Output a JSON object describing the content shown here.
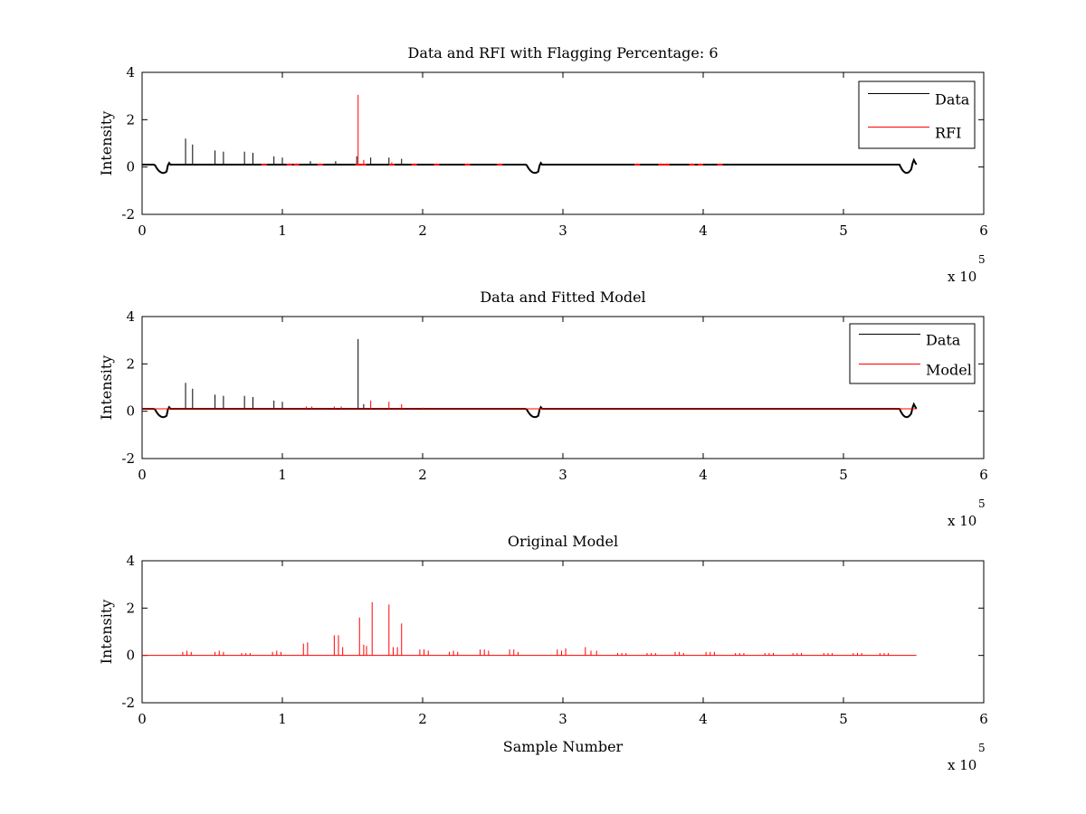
{
  "figure": {
    "background": "#ffffff"
  },
  "chart_data": [
    {
      "type": "line",
      "title": "Data and RFI with Flagging Percentage: 6",
      "xlabel": "",
      "ylabel": "Intensity",
      "xlim": [
        0,
        6
      ],
      "ylim": [
        -2,
        4
      ],
      "x_ticks": [
        "0",
        "1",
        "2",
        "3",
        "4",
        "5",
        "6"
      ],
      "y_ticks": [
        "-2",
        "0",
        "2",
        "4"
      ],
      "x_multiplier_text": "x 10",
      "x_multiplier_exponent": "5",
      "legend": {
        "placement": "top-right",
        "entries": [
          {
            "label": "Data",
            "color": "#000000"
          },
          {
            "label": "RFI",
            "color": "#ff0000"
          }
        ]
      },
      "series": [
        {
          "name": "Data",
          "color": "#000000",
          "baseline": 0.1,
          "end_x": 5.52,
          "dips": [
            {
              "x": 0.15,
              "depth": -0.35,
              "width": 0.12
            },
            {
              "x": 2.8,
              "depth": -0.35,
              "width": 0.12
            },
            {
              "x": 5.45,
              "depth": -0.35,
              "width": 0.1
            }
          ],
          "bumps": [
            {
              "x": 0.19,
              "height": 0.25,
              "width": 0.03
            },
            {
              "x": 2.84,
              "height": 0.25,
              "width": 0.03
            },
            {
              "x": 5.5,
              "height": 0.2,
              "width": 0.03
            }
          ],
          "spikes": [
            {
              "x": 0.31,
              "y": 1.2
            },
            {
              "x": 0.36,
              "y": 0.95
            },
            {
              "x": 0.52,
              "y": 0.7
            },
            {
              "x": 0.58,
              "y": 0.65
            },
            {
              "x": 0.73,
              "y": 0.65
            },
            {
              "x": 0.79,
              "y": 0.6
            },
            {
              "x": 0.94,
              "y": 0.45
            },
            {
              "x": 1.0,
              "y": 0.4
            },
            {
              "x": 1.2,
              "y": 0.25
            },
            {
              "x": 1.38,
              "y": 0.25
            },
            {
              "x": 1.53,
              "y": 0.45
            },
            {
              "x": 1.63,
              "y": 0.4
            },
            {
              "x": 1.76,
              "y": 0.4
            },
            {
              "x": 1.85,
              "y": 0.35
            }
          ]
        },
        {
          "name": "RFI",
          "color": "#ff0000",
          "baseline": 0.1,
          "spikes": [
            {
              "x": 1.54,
              "y": 3.05
            },
            {
              "x": 1.58,
              "y": 0.3
            },
            {
              "x": 0.87,
              "y": 0.15
            },
            {
              "x": 1.05,
              "y": 0.15
            },
            {
              "x": 1.1,
              "y": 0.15
            },
            {
              "x": 1.27,
              "y": 0.15
            },
            {
              "x": 1.78,
              "y": 0.2
            },
            {
              "x": 1.94,
              "y": 0.15
            },
            {
              "x": 2.1,
              "y": 0.15
            },
            {
              "x": 2.32,
              "y": 0.15
            },
            {
              "x": 2.55,
              "y": 0.15
            },
            {
              "x": 3.53,
              "y": 0.15
            },
            {
              "x": 3.7,
              "y": 0.15
            },
            {
              "x": 3.74,
              "y": 0.15
            },
            {
              "x": 3.92,
              "y": 0.15
            },
            {
              "x": 3.98,
              "y": 0.15
            },
            {
              "x": 4.12,
              "y": 0.15
            }
          ]
        }
      ]
    },
    {
      "type": "line",
      "title": "Data and Fitted Model",
      "xlabel": "",
      "ylabel": "Intensity",
      "xlim": [
        0,
        6
      ],
      "ylim": [
        -2,
        4
      ],
      "x_ticks": [
        "0",
        "1",
        "2",
        "3",
        "4",
        "5",
        "6"
      ],
      "y_ticks": [
        "-2",
        "0",
        "2",
        "4"
      ],
      "x_multiplier_text": "x 10",
      "x_multiplier_exponent": "5",
      "legend": {
        "placement": "top-right",
        "entries": [
          {
            "label": "Data",
            "color": "#000000"
          },
          {
            "label": "Model",
            "color": "#ff0000"
          }
        ]
      },
      "series": [
        {
          "name": "Data",
          "color": "#000000",
          "baseline": 0.1,
          "end_x": 5.52,
          "dips": [
            {
              "x": 0.15,
              "depth": -0.35,
              "width": 0.12
            },
            {
              "x": 2.8,
              "depth": -0.35,
              "width": 0.12
            },
            {
              "x": 5.45,
              "depth": -0.35,
              "width": 0.1
            }
          ],
          "bumps": [
            {
              "x": 0.19,
              "height": 0.25,
              "width": 0.03
            },
            {
              "x": 2.84,
              "height": 0.25,
              "width": 0.03
            },
            {
              "x": 5.5,
              "height": 0.2,
              "width": 0.03
            }
          ],
          "spikes": [
            {
              "x": 0.31,
              "y": 1.2
            },
            {
              "x": 0.36,
              "y": 0.95
            },
            {
              "x": 0.52,
              "y": 0.7
            },
            {
              "x": 0.58,
              "y": 0.65
            },
            {
              "x": 0.73,
              "y": 0.65
            },
            {
              "x": 0.79,
              "y": 0.6
            },
            {
              "x": 0.94,
              "y": 0.45
            },
            {
              "x": 1.0,
              "y": 0.4
            },
            {
              "x": 1.54,
              "y": 3.05
            },
            {
              "x": 1.58,
              "y": 0.3
            }
          ]
        },
        {
          "name": "Model",
          "color": "#ff0000",
          "baseline": 0.1,
          "end_x": 5.52,
          "spikes": [
            {
              "x": 1.76,
              "y": 0.4
            },
            {
              "x": 1.63,
              "y": 0.45
            },
            {
              "x": 1.85,
              "y": 0.3
            },
            {
              "x": 1.37,
              "y": 0.2
            },
            {
              "x": 1.42,
              "y": 0.2
            },
            {
              "x": 1.17,
              "y": 0.2
            },
            {
              "x": 1.21,
              "y": 0.2
            },
            {
              "x": 2.0,
              "y": 0.15
            },
            {
              "x": 2.42,
              "y": 0.12
            },
            {
              "x": 3.16,
              "y": 0.12
            }
          ]
        }
      ]
    },
    {
      "type": "line",
      "title": "Original Model",
      "xlabel": "Sample Number",
      "ylabel": "Intensity",
      "xlim": [
        0,
        6
      ],
      "ylim": [
        -2,
        4
      ],
      "x_ticks": [
        "0",
        "1",
        "2",
        "3",
        "4",
        "5",
        "6"
      ],
      "y_ticks": [
        "-2",
        "0",
        "2",
        "4"
      ],
      "x_multiplier_text": "x 10",
      "x_multiplier_exponent": "5",
      "series": [
        {
          "color": "#ff0000",
          "baseline": 0,
          "end_x": 5.52,
          "spikes": [
            {
              "x": 0.29,
              "y": 0.15
            },
            {
              "x": 0.32,
              "y": 0.2
            },
            {
              "x": 0.35,
              "y": 0.15
            },
            {
              "x": 0.52,
              "y": 0.15
            },
            {
              "x": 0.55,
              "y": 0.2
            },
            {
              "x": 0.58,
              "y": 0.15
            },
            {
              "x": 0.71,
              "y": 0.1
            },
            {
              "x": 0.74,
              "y": 0.1
            },
            {
              "x": 0.77,
              "y": 0.1
            },
            {
              "x": 0.93,
              "y": 0.15
            },
            {
              "x": 0.96,
              "y": 0.2
            },
            {
              "x": 0.99,
              "y": 0.15
            },
            {
              "x": 1.15,
              "y": 0.5
            },
            {
              "x": 1.18,
              "y": 0.55
            },
            {
              "x": 1.37,
              "y": 0.85
            },
            {
              "x": 1.4,
              "y": 0.85
            },
            {
              "x": 1.43,
              "y": 0.35
            },
            {
              "x": 1.55,
              "y": 1.6
            },
            {
              "x": 1.58,
              "y": 0.45
            },
            {
              "x": 1.6,
              "y": 0.4
            },
            {
              "x": 1.64,
              "y": 2.25
            },
            {
              "x": 1.76,
              "y": 2.15
            },
            {
              "x": 1.79,
              "y": 0.35
            },
            {
              "x": 1.82,
              "y": 0.35
            },
            {
              "x": 1.85,
              "y": 1.35
            },
            {
              "x": 1.98,
              "y": 0.25
            },
            {
              "x": 2.01,
              "y": 0.25
            },
            {
              "x": 2.04,
              "y": 0.2
            },
            {
              "x": 2.19,
              "y": 0.15
            },
            {
              "x": 2.22,
              "y": 0.2
            },
            {
              "x": 2.25,
              "y": 0.15
            },
            {
              "x": 2.41,
              "y": 0.25
            },
            {
              "x": 2.44,
              "y": 0.25
            },
            {
              "x": 2.47,
              "y": 0.2
            },
            {
              "x": 2.62,
              "y": 0.25
            },
            {
              "x": 2.65,
              "y": 0.25
            },
            {
              "x": 2.68,
              "y": 0.15
            },
            {
              "x": 2.96,
              "y": 0.25
            },
            {
              "x": 2.99,
              "y": 0.2
            },
            {
              "x": 3.02,
              "y": 0.3
            },
            {
              "x": 3.16,
              "y": 0.35
            },
            {
              "x": 3.2,
              "y": 0.2
            },
            {
              "x": 3.24,
              "y": 0.2
            },
            {
              "x": 3.39,
              "y": 0.1
            },
            {
              "x": 3.42,
              "y": 0.1
            },
            {
              "x": 3.45,
              "y": 0.1
            },
            {
              "x": 3.6,
              "y": 0.1
            },
            {
              "x": 3.63,
              "y": 0.1
            },
            {
              "x": 3.66,
              "y": 0.1
            },
            {
              "x": 3.8,
              "y": 0.15
            },
            {
              "x": 3.83,
              "y": 0.15
            },
            {
              "x": 3.86,
              "y": 0.1
            },
            {
              "x": 4.02,
              "y": 0.15
            },
            {
              "x": 4.05,
              "y": 0.15
            },
            {
              "x": 4.08,
              "y": 0.15
            },
            {
              "x": 4.23,
              "y": 0.1
            },
            {
              "x": 4.26,
              "y": 0.1
            },
            {
              "x": 4.29,
              "y": 0.1
            },
            {
              "x": 4.44,
              "y": 0.1
            },
            {
              "x": 4.47,
              "y": 0.1
            },
            {
              "x": 4.5,
              "y": 0.1
            },
            {
              "x": 4.64,
              "y": 0.1
            },
            {
              "x": 4.67,
              "y": 0.1
            },
            {
              "x": 4.7,
              "y": 0.1
            },
            {
              "x": 4.86,
              "y": 0.1
            },
            {
              "x": 4.89,
              "y": 0.1
            },
            {
              "x": 4.92,
              "y": 0.1
            },
            {
              "x": 5.07,
              "y": 0.1
            },
            {
              "x": 5.1,
              "y": 0.1
            },
            {
              "x": 5.13,
              "y": 0.1
            },
            {
              "x": 5.26,
              "y": 0.1
            },
            {
              "x": 5.29,
              "y": 0.1
            },
            {
              "x": 5.32,
              "y": 0.1
            }
          ]
        }
      ]
    }
  ]
}
